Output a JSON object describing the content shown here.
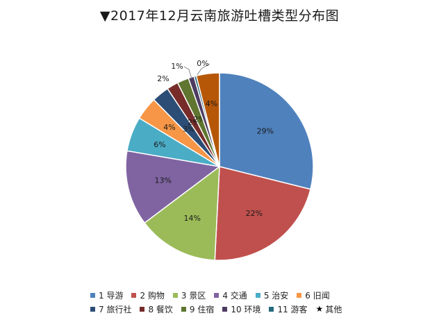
{
  "title": "▼2017年12月云南旅游吐槽类型分布图",
  "chart_data": {
    "type": "pie",
    "title": "▼2017年12月云南旅游吐槽类型分布图",
    "start_angle_deg": 0,
    "direction": "clockwise",
    "slices": [
      {
        "label": "1 导游",
        "value": 29,
        "text": "29%",
        "color": "#4F81BD"
      },
      {
        "label": "2 购物",
        "value": 22,
        "text": "22%",
        "color": "#C0504D"
      },
      {
        "label": "3 景区",
        "value": 14,
        "text": "14%",
        "color": "#9BBB59"
      },
      {
        "label": "4 交通",
        "value": 13,
        "text": "13%",
        "color": "#8064A2"
      },
      {
        "label": "5 治安",
        "value": 6,
        "text": "6%",
        "color": "#4BACC6"
      },
      {
        "label": "6 旧闻",
        "value": 4,
        "text": "4%",
        "color": "#F79646"
      },
      {
        "label": "7 旅行社",
        "value": 3,
        "text": "3%",
        "color": "#2C4D75"
      },
      {
        "label": "8 餐饮",
        "value": 2,
        "text": "2%",
        "color": "#772C2A"
      },
      {
        "label": "9 住宿",
        "value": 2,
        "text": "2%",
        "color": "#5F7530"
      },
      {
        "label": "10 环境",
        "value": 1,
        "text": "1%",
        "color": "#4D3B62"
      },
      {
        "label": "11 游客",
        "value": 0.4,
        "text": "0%",
        "color": "#276A7C"
      },
      {
        "label": "★ 其他",
        "value": 4,
        "text": "4%",
        "color": "#B65708"
      }
    ],
    "legend_position": "bottom"
  }
}
